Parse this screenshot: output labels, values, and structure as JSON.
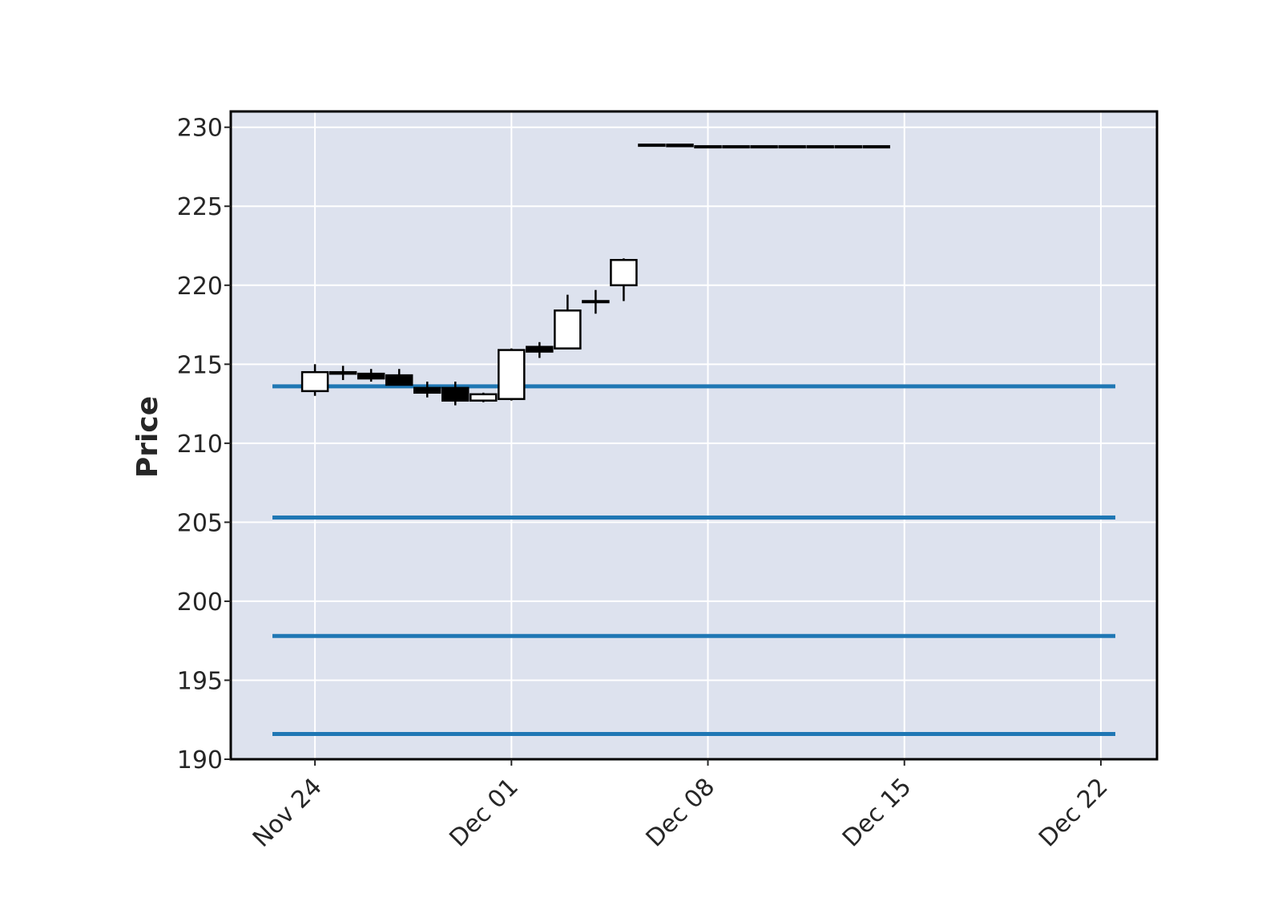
{
  "chart_data": {
    "type": "candlestick",
    "title": "",
    "xlabel": "",
    "ylabel": "Price",
    "ylim": [
      190,
      231
    ],
    "yticks": [
      190,
      195,
      200,
      205,
      210,
      215,
      220,
      225,
      230
    ],
    "xticks": [
      {
        "label": "Nov 24",
        "date": "2023-11-24"
      },
      {
        "label": "Dec 01",
        "date": "2023-12-01"
      },
      {
        "label": "Dec 08",
        "date": "2023-12-08"
      },
      {
        "label": "Dec 15",
        "date": "2023-12-15"
      },
      {
        "label": "Dec 22",
        "date": "2023-12-22"
      }
    ],
    "xlim": [
      "2023-11-21",
      "2023-12-24"
    ],
    "grid": true,
    "background_color": "#dde2ee",
    "up_color": "#ffffff",
    "down_color": "#000000",
    "candles": [
      {
        "date": "2023-11-24",
        "open": 213.3,
        "high": 215.0,
        "low": 213.0,
        "close": 214.5
      },
      {
        "date": "2023-11-25",
        "open": 214.5,
        "high": 214.9,
        "low": 214.0,
        "close": 214.4
      },
      {
        "date": "2023-11-26",
        "open": 214.4,
        "high": 214.7,
        "low": 213.9,
        "close": 214.1
      },
      {
        "date": "2023-11-27",
        "open": 214.3,
        "high": 214.7,
        "low": 213.7,
        "close": 213.7
      },
      {
        "date": "2023-11-28",
        "open": 213.5,
        "high": 213.9,
        "low": 212.9,
        "close": 213.2
      },
      {
        "date": "2023-11-29",
        "open": 213.5,
        "high": 213.9,
        "low": 212.4,
        "close": 212.7
      },
      {
        "date": "2023-11-30",
        "open": 212.7,
        "high": 213.2,
        "low": 212.6,
        "close": 213.1
      },
      {
        "date": "2023-12-01",
        "open": 212.8,
        "high": 216.0,
        "low": 212.7,
        "close": 215.9
      },
      {
        "date": "2023-12-02",
        "open": 216.1,
        "high": 216.4,
        "low": 215.4,
        "close": 215.8
      },
      {
        "date": "2023-12-03",
        "open": 216.0,
        "high": 219.4,
        "low": 216.0,
        "close": 218.4
      },
      {
        "date": "2023-12-04",
        "open": 219.0,
        "high": 219.7,
        "low": 218.2,
        "close": 219.0
      },
      {
        "date": "2023-12-05",
        "open": 220.0,
        "high": 221.7,
        "low": 219.0,
        "close": 221.6
      },
      {
        "date": "2023-12-06",
        "open": 228.9,
        "high": 228.9,
        "low": 228.9,
        "close": 228.9
      },
      {
        "date": "2023-12-07",
        "open": 228.9,
        "high": 228.9,
        "low": 228.8,
        "close": 228.8
      },
      {
        "date": "2023-12-08",
        "open": 228.8,
        "high": 228.8,
        "low": 228.8,
        "close": 228.8
      },
      {
        "date": "2023-12-09",
        "open": 228.8,
        "high": 228.8,
        "low": 228.8,
        "close": 228.8
      },
      {
        "date": "2023-12-10",
        "open": 228.8,
        "high": 228.8,
        "low": 228.8,
        "close": 228.8
      },
      {
        "date": "2023-12-11",
        "open": 228.8,
        "high": 228.8,
        "low": 228.8,
        "close": 228.8
      },
      {
        "date": "2023-12-12",
        "open": 228.8,
        "high": 228.8,
        "low": 228.8,
        "close": 228.8
      },
      {
        "date": "2023-12-13",
        "open": 228.8,
        "high": 228.8,
        "low": 228.8,
        "close": 228.8
      },
      {
        "date": "2023-12-14",
        "open": 228.8,
        "high": 228.8,
        "low": 228.8,
        "close": 228.8
      }
    ],
    "hlines": {
      "color": "#1f77b4",
      "values": [
        213.6,
        205.3,
        197.8,
        191.6
      ]
    }
  }
}
